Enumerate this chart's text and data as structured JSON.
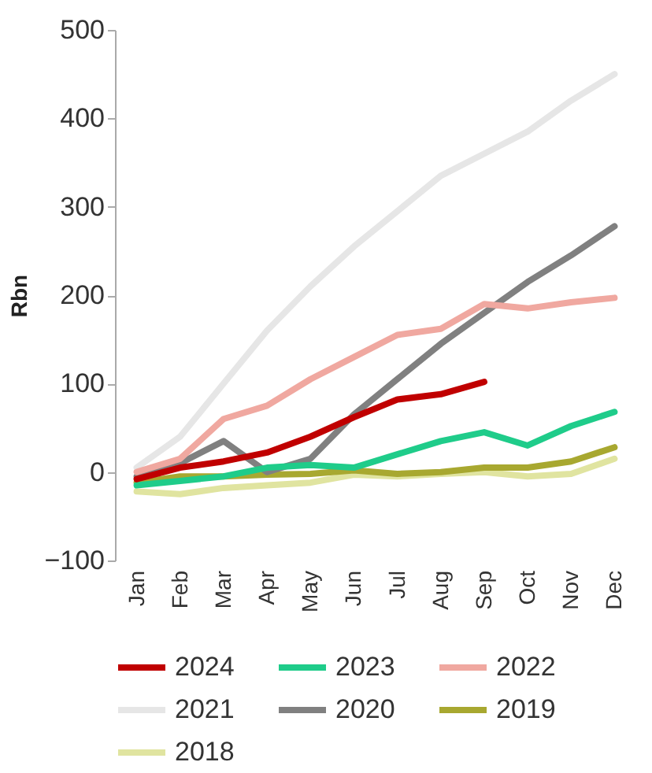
{
  "chart_data": {
    "type": "line",
    "ylabel": "Rbn",
    "categories": [
      "Jan",
      "Feb",
      "Mar",
      "Apr",
      "May",
      "Jun",
      "Jul",
      "Aug",
      "Sep",
      "Oct",
      "Nov",
      "Dec"
    ],
    "series": [
      {
        "name": "2024",
        "color": "#c00000",
        "values": [
          -8,
          5,
          12,
          22,
          40,
          62,
          82,
          88,
          102,
          null,
          null,
          null
        ]
      },
      {
        "name": "2023",
        "color": "#1fcc8a",
        "values": [
          -15,
          -10,
          -5,
          5,
          8,
          5,
          20,
          35,
          45,
          30,
          52,
          68
        ]
      },
      {
        "name": "2022",
        "color": "#f0a8a0",
        "values": [
          0,
          15,
          60,
          75,
          105,
          130,
          155,
          162,
          190,
          185,
          192,
          197
        ]
      },
      {
        "name": "2021",
        "color": "#e6e6e6",
        "values": [
          5,
          40,
          100,
          160,
          210,
          255,
          295,
          335,
          360,
          385,
          420,
          450
        ]
      },
      {
        "name": "2020",
        "color": "#808080",
        "values": [
          -5,
          10,
          35,
          0,
          15,
          65,
          105,
          145,
          180,
          215,
          245,
          278
        ]
      },
      {
        "name": "2019",
        "color": "#a8a830",
        "values": [
          -12,
          -5,
          -5,
          -3,
          -2,
          2,
          -2,
          0,
          5,
          5,
          12,
          28
        ]
      },
      {
        "name": "2018",
        "color": "#e0e4a0",
        "values": [
          -22,
          -25,
          -18,
          -15,
          -12,
          -3,
          -5,
          -2,
          0,
          -5,
          -2,
          15
        ]
      }
    ],
    "ylim": [
      -100,
      500
    ],
    "yticks": [
      -100,
      0,
      100,
      200,
      300,
      400,
      500
    ],
    "grid": false,
    "legend": "bottom",
    "marker": "none",
    "line_style": "solid"
  }
}
